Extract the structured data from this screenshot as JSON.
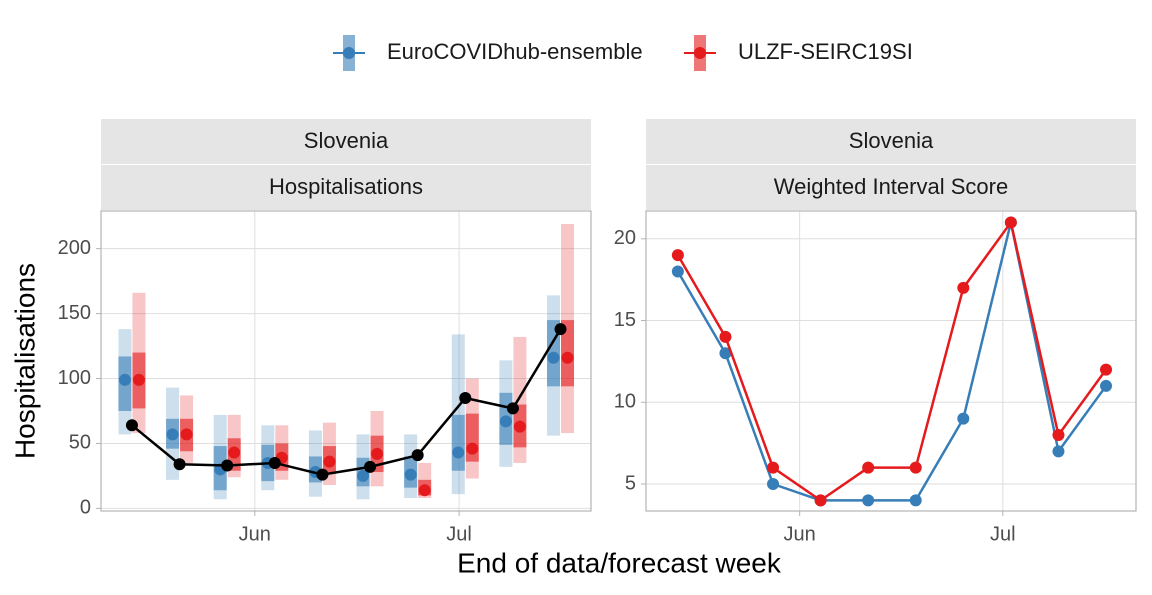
{
  "legend": {
    "position": "top"
  },
  "chart_data": [
    {
      "type": "interval",
      "strip": [
        "Slovenia",
        "Hospitalisations"
      ],
      "ylabel": "Hospitalisations",
      "xlabel": "End of data/forecast week",
      "categories": [
        null,
        null,
        null,
        null,
        null,
        null,
        null,
        null,
        null,
        null
      ],
      "xlim": [
        -0.65,
        9.64
      ],
      "xticks": [
        {
          "value": 2.58,
          "label": "Jun"
        },
        {
          "value": 6.87,
          "label": "Jul"
        }
      ],
      "ylim": [
        -2,
        229
      ],
      "yticks": [
        0,
        50,
        100,
        150,
        200
      ],
      "grid": true,
      "observed": {
        "color": "#000000",
        "values": [
          64,
          34,
          33,
          35,
          26,
          32,
          41,
          85,
          77,
          138
        ]
      },
      "series": [
        {
          "name": "EuroCOVIDhub-ensemble",
          "color": "#377eb8",
          "values": [
            99,
            57,
            30,
            35,
            28,
            25,
            26,
            43,
            67,
            116
          ],
          "lower_90": [
            57,
            22,
            7,
            14,
            9,
            7,
            8,
            11,
            32,
            56
          ],
          "upper_90": [
            138,
            93,
            72,
            64,
            60,
            57,
            57,
            134,
            114,
            164
          ],
          "lower_50": [
            75,
            46,
            14,
            21,
            20,
            17,
            16,
            29,
            49,
            94
          ],
          "upper_50": [
            117,
            69,
            48,
            49,
            40,
            39,
            40,
            72,
            89,
            145
          ]
        },
        {
          "name": "ULZF-SEIRC19SI",
          "color": "#e41a1c",
          "values": [
            99,
            57,
            43,
            39,
            36,
            42,
            14,
            46,
            63,
            116
          ],
          "lower_90": [
            58,
            35,
            24,
            22,
            18,
            17,
            8,
            23,
            35,
            58
          ],
          "upper_90": [
            166,
            87,
            72,
            64,
            66,
            75,
            35,
            100,
            132,
            219
          ],
          "lower_50": [
            77,
            44,
            29,
            29,
            27,
            28,
            10,
            36,
            47,
            94
          ],
          "upper_50": [
            120,
            69,
            54,
            50,
            48,
            56,
            22,
            73,
            80,
            145
          ]
        }
      ]
    },
    {
      "type": "line",
      "strip": [
        "Slovenia",
        "Weighted Interval Score"
      ],
      "categories": [
        null,
        null,
        null,
        null,
        null,
        null,
        null,
        null,
        null,
        null
      ],
      "xlim": [
        -0.67,
        9.63
      ],
      "xticks": [
        {
          "value": 2.56,
          "label": "Jun"
        },
        {
          "value": 6.83,
          "label": "Jul"
        }
      ],
      "ylim": [
        3.35,
        21.7
      ],
      "yticks": [
        5,
        10,
        15,
        20
      ],
      "grid": true,
      "series": [
        {
          "name": "EuroCOVIDhub-ensemble",
          "color": "#377eb8",
          "values": [
            18,
            13,
            5,
            4,
            4,
            4,
            9,
            21,
            7,
            11
          ]
        },
        {
          "name": "ULZF-SEIRC19SI",
          "color": "#e41a1c",
          "values": [
            19,
            14,
            6,
            4,
            6,
            6,
            17,
            21,
            8,
            12
          ]
        }
      ]
    }
  ]
}
